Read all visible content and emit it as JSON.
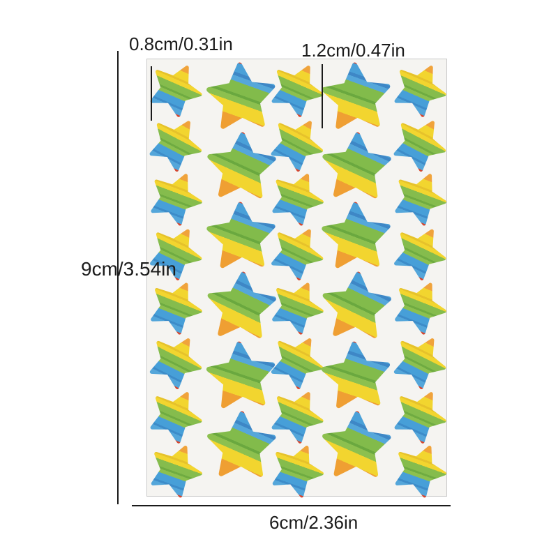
{
  "diagram": {
    "labels": {
      "small_star_size": "0.8cm/0.31in",
      "large_star_size": "1.2cm/0.47in",
      "sheet_height": "9cm/3.54in",
      "sheet_width": "6cm/2.36in"
    },
    "sheet": {
      "background": "#f5f4f1",
      "border_color": "#c9c9c9",
      "columns": [
        {
          "type": "small",
          "count": 8
        },
        {
          "type": "large",
          "count": 6
        },
        {
          "type": "small",
          "count": 8
        },
        {
          "type": "large",
          "count": 6
        },
        {
          "type": "small",
          "count": 8
        }
      ]
    },
    "colors": {
      "stripe_red": "#d6452e",
      "stripe_orange": "#ef9f33",
      "stripe_yellow": "#f2d52f",
      "stripe_green": "#85bc4d",
      "stripe_blue": "#4aa0d8",
      "measure_line": "#1a1a1a",
      "text": "#1c1c1c"
    }
  }
}
